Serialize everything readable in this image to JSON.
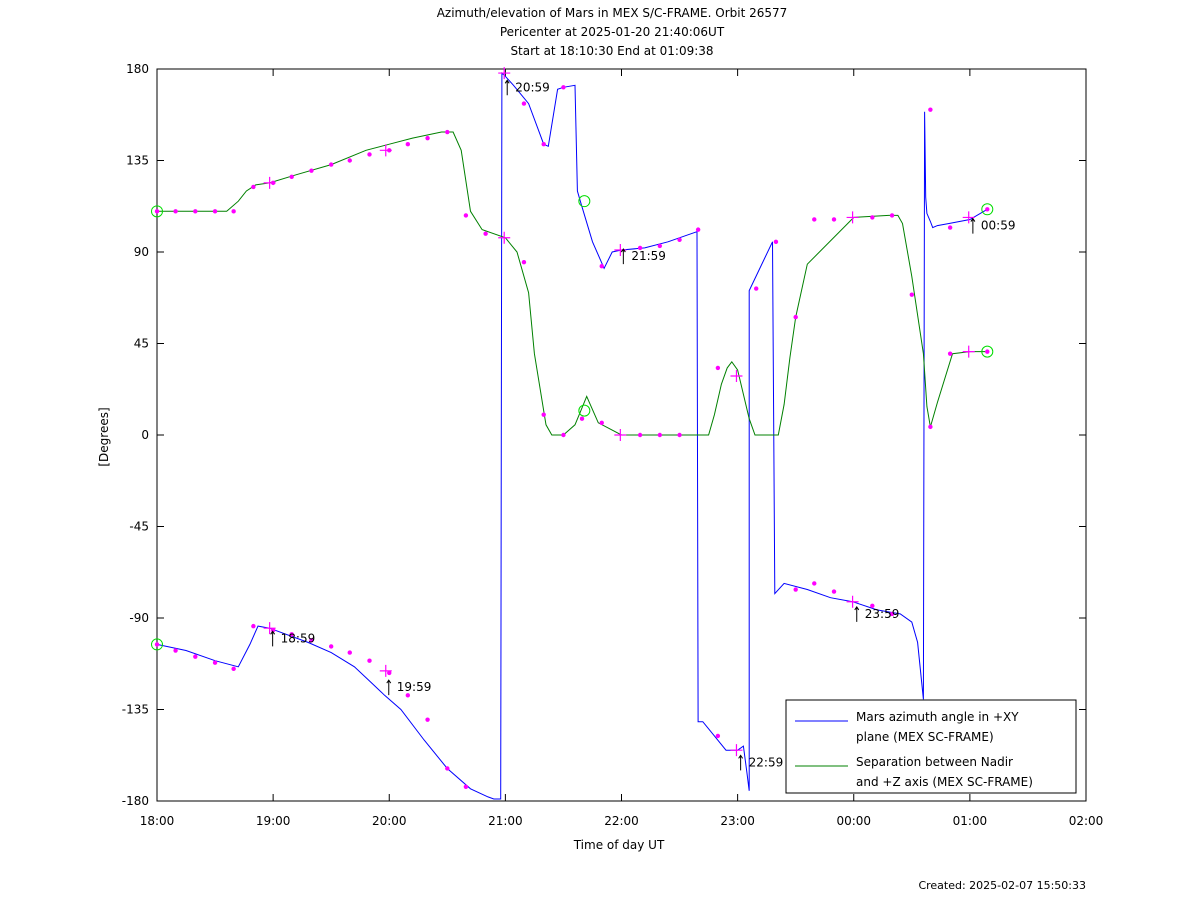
{
  "chart_data": {
    "type": "line",
    "title_lines": [
      "Azimuth/elevation of Mars in MEX S/C-FRAME.  Orbit 26577",
      "Pericenter at 2025-01-20 21:40:06UT",
      "Start at 18:10:30 End at 01:09:38"
    ],
    "xlabel": "Time of day UT",
    "ylabel": "[Degrees]",
    "x_unit": "hours since 18:00 UT",
    "xlim": [
      0,
      8
    ],
    "ylim": [
      -180,
      180
    ],
    "xticks": [
      0,
      1,
      2,
      3,
      4,
      5,
      6,
      7,
      8
    ],
    "xtick_labels": [
      "18:00",
      "19:00",
      "20:00",
      "21:00",
      "22:00",
      "23:00",
      "00:00",
      "01:00",
      "02:00"
    ],
    "yticks": [
      -180,
      -135,
      -90,
      -45,
      0,
      45,
      90,
      135,
      180
    ],
    "ytick_labels": [
      "-180",
      "-135",
      "-90",
      "-45",
      "0",
      "45",
      "90",
      "135",
      "180"
    ],
    "created": "Created: 2025-02-07 15:50:33",
    "legend_position": "bottom-right",
    "series": [
      {
        "name": "Mars azimuth angle in +XY plane (MEX SC-FRAME)",
        "legend_lines": [
          "Mars azimuth angle in +XY",
          "plane (MEX SC-FRAME)"
        ],
        "color": "#0000ff",
        "x": [
          0.0,
          0.25,
          0.5,
          0.7,
          0.8,
          0.87,
          0.97,
          1.3,
          1.5,
          1.7,
          1.85,
          1.96,
          2.1,
          2.3,
          2.5,
          2.7,
          2.85,
          2.9,
          2.93,
          2.95,
          2.96,
          2.97,
          2.99,
          3.07,
          3.2,
          3.33,
          3.37,
          3.45,
          3.5,
          3.6,
          3.62,
          3.65,
          3.75,
          3.85,
          3.92,
          4.0,
          4.2,
          4.4,
          4.6,
          4.65,
          4.66,
          4.7,
          4.8,
          4.9,
          5.0,
          5.05,
          5.08,
          5.1,
          5.1,
          5.3,
          5.32,
          5.32,
          5.4,
          5.6,
          5.8,
          5.99,
          6.2,
          6.4,
          6.5,
          6.55,
          6.6,
          6.61,
          6.62,
          6.63,
          6.66,
          6.68,
          6.72,
          6.82,
          7.0,
          7.15
        ],
        "y": [
          -103,
          -106,
          -111,
          -114,
          -103,
          -94,
          -95,
          -102,
          -107,
          -114,
          -122,
          -128,
          -135,
          -150,
          -164,
          -174,
          -178,
          -179,
          -179,
          -179,
          -179,
          178,
          177,
          172,
          163,
          143,
          142,
          170,
          171,
          172,
          120,
          114,
          95,
          82,
          90,
          91,
          92,
          95,
          99,
          100,
          -141,
          -141,
          -148,
          -155,
          -155,
          -153,
          -166,
          -175,
          71,
          95,
          -78,
          -78,
          -73,
          -76,
          -80,
          -82,
          -86,
          -88,
          -92,
          -102,
          -130,
          159,
          117,
          109,
          105,
          102,
          103,
          104,
          106,
          111
        ]
      },
      {
        "name": "Separation between Nadir and +Z axis (MEX SC-FRAME)",
        "legend_lines": [
          "Separation between Nadir",
          "and +Z axis (MEX SC-FRAME)"
        ],
        "color": "#008000",
        "x": [
          0.0,
          0.2,
          0.4,
          0.6,
          0.7,
          0.77,
          0.85,
          0.97,
          1.2,
          1.5,
          1.8,
          2.0,
          2.2,
          2.45,
          2.55,
          2.62,
          2.7,
          2.8,
          3.0,
          3.1,
          3.2,
          3.25,
          3.35,
          3.4,
          3.5,
          3.6,
          3.65,
          3.7,
          3.8,
          4.0,
          4.3,
          4.6,
          4.65,
          4.7,
          4.75,
          4.8,
          4.86,
          4.91,
          4.95,
          5.0,
          5.1,
          5.15,
          5.3,
          5.35,
          5.4,
          5.45,
          5.5,
          5.6,
          6.0,
          6.3,
          6.38,
          6.42,
          6.5,
          6.6,
          6.63,
          6.66,
          6.72,
          6.85,
          7.0,
          7.15
        ],
        "y": [
          110,
          110,
          110,
          110,
          115,
          120,
          123,
          124,
          128,
          133,
          140,
          143,
          146,
          149,
          149,
          140,
          110,
          101,
          97,
          90,
          70,
          40,
          5,
          0,
          0,
          5,
          12,
          19,
          6,
          0,
          0,
          0,
          0,
          0,
          0,
          10,
          25,
          33,
          36,
          32,
          8,
          0,
          0,
          0,
          15,
          38,
          58,
          84,
          107,
          108,
          108,
          104,
          78,
          40,
          14,
          4,
          16,
          40,
          41,
          41
        ]
      }
    ],
    "time_labels": [
      {
        "text": "18:59",
        "x": 0.97,
        "y": -100
      },
      {
        "text": "19:59",
        "x": 1.97,
        "y": -124
      },
      {
        "text": "20:59",
        "x": 2.99,
        "y": 171
      },
      {
        "text": "21:59",
        "x": 3.99,
        "y": 88
      },
      {
        "text": "22:59",
        "x": 5.0,
        "y": -161
      },
      {
        "text": "23:59",
        "x": 6.0,
        "y": -88
      },
      {
        "text": "00:59",
        "x": 7.0,
        "y": 103
      }
    ],
    "cross_markers": [
      {
        "x": 0.97,
        "y": 124
      },
      {
        "x": 1.97,
        "y": 140
      },
      {
        "x": 2.99,
        "y": 97
      },
      {
        "x": 3.99,
        "y": 0
      },
      {
        "x": 4.99,
        "y": 29
      },
      {
        "x": 5.99,
        "y": 107
      },
      {
        "x": 0.97,
        "y": -95
      },
      {
        "x": 1.97,
        "y": -116
      },
      {
        "x": 2.99,
        "y": 178
      },
      {
        "x": 3.99,
        "y": 91
      },
      {
        "x": 4.99,
        "y": -155
      },
      {
        "x": 5.99,
        "y": -82
      },
      {
        "x": 6.99,
        "y": 107
      },
      {
        "x": 6.99,
        "y": 41
      }
    ],
    "circle_markers": [
      {
        "x": 0.0,
        "y": 110
      },
      {
        "x": 0.0,
        "y": -103
      },
      {
        "x": 3.68,
        "y": 115
      },
      {
        "x": 3.68,
        "y": 12
      },
      {
        "x": 7.15,
        "y": 111
      },
      {
        "x": 7.15,
        "y": 41
      }
    ],
    "dot_markers": [
      {
        "x": 0.0,
        "y": 110
      },
      {
        "x": 0.16,
        "y": 110
      },
      {
        "x": 0.33,
        "y": 110
      },
      {
        "x": 0.5,
        "y": 110
      },
      {
        "x": 0.66,
        "y": 110
      },
      {
        "x": 0.83,
        "y": 122
      },
      {
        "x": 1.0,
        "y": 124
      },
      {
        "x": 1.16,
        "y": 127
      },
      {
        "x": 1.33,
        "y": 130
      },
      {
        "x": 1.5,
        "y": 133
      },
      {
        "x": 1.66,
        "y": 135
      },
      {
        "x": 1.83,
        "y": 138
      },
      {
        "x": 2.0,
        "y": 140
      },
      {
        "x": 2.16,
        "y": 143
      },
      {
        "x": 2.33,
        "y": 146
      },
      {
        "x": 2.5,
        "y": 149
      },
      {
        "x": 2.66,
        "y": 108
      },
      {
        "x": 2.83,
        "y": 99
      },
      {
        "x": 3.16,
        "y": 85
      },
      {
        "x": 3.33,
        "y": 10
      },
      {
        "x": 3.5,
        "y": 0
      },
      {
        "x": 3.66,
        "y": 8
      },
      {
        "x": 3.83,
        "y": 6
      },
      {
        "x": 4.16,
        "y": 0
      },
      {
        "x": 4.33,
        "y": 0
      },
      {
        "x": 4.5,
        "y": 0
      },
      {
        "x": 4.83,
        "y": 33
      },
      {
        "x": 5.5,
        "y": 58
      },
      {
        "x": 5.66,
        "y": 106
      },
      {
        "x": 5.83,
        "y": 106
      },
      {
        "x": 6.16,
        "y": 107
      },
      {
        "x": 6.33,
        "y": 108
      },
      {
        "x": 6.5,
        "y": 69
      },
      {
        "x": 6.66,
        "y": 4
      },
      {
        "x": 6.83,
        "y": 40
      },
      {
        "x": 0.0,
        "y": -103
      },
      {
        "x": 0.16,
        "y": -106
      },
      {
        "x": 0.33,
        "y": -109
      },
      {
        "x": 0.5,
        "y": -112
      },
      {
        "x": 0.66,
        "y": -115
      },
      {
        "x": 0.83,
        "y": -94
      },
      {
        "x": 1.0,
        "y": -96
      },
      {
        "x": 1.16,
        "y": -98
      },
      {
        "x": 1.33,
        "y": -101
      },
      {
        "x": 1.5,
        "y": -104
      },
      {
        "x": 1.66,
        "y": -107
      },
      {
        "x": 1.83,
        "y": -111
      },
      {
        "x": 2.0,
        "y": -117
      },
      {
        "x": 2.16,
        "y": -128
      },
      {
        "x": 2.33,
        "y": -140
      },
      {
        "x": 2.5,
        "y": -164
      },
      {
        "x": 2.66,
        "y": -173
      },
      {
        "x": 3.16,
        "y": 163
      },
      {
        "x": 3.33,
        "y": 143
      },
      {
        "x": 3.5,
        "y": 171
      },
      {
        "x": 3.83,
        "y": 83
      },
      {
        "x": 4.16,
        "y": 92
      },
      {
        "x": 4.33,
        "y": 93
      },
      {
        "x": 4.5,
        "y": 96
      },
      {
        "x": 4.66,
        "y": 101
      },
      {
        "x": 4.83,
        "y": -148
      },
      {
        "x": 5.16,
        "y": 72
      },
      {
        "x": 5.33,
        "y": 95
      },
      {
        "x": 5.5,
        "y": -76
      },
      {
        "x": 5.66,
        "y": -73
      },
      {
        "x": 5.83,
        "y": -77
      },
      {
        "x": 6.16,
        "y": -84
      },
      {
        "x": 6.33,
        "y": -88
      },
      {
        "x": 6.66,
        "y": 160
      },
      {
        "x": 6.83,
        "y": 102
      },
      {
        "x": 7.15,
        "y": 111
      },
      {
        "x": 7.15,
        "y": 41
      }
    ]
  }
}
